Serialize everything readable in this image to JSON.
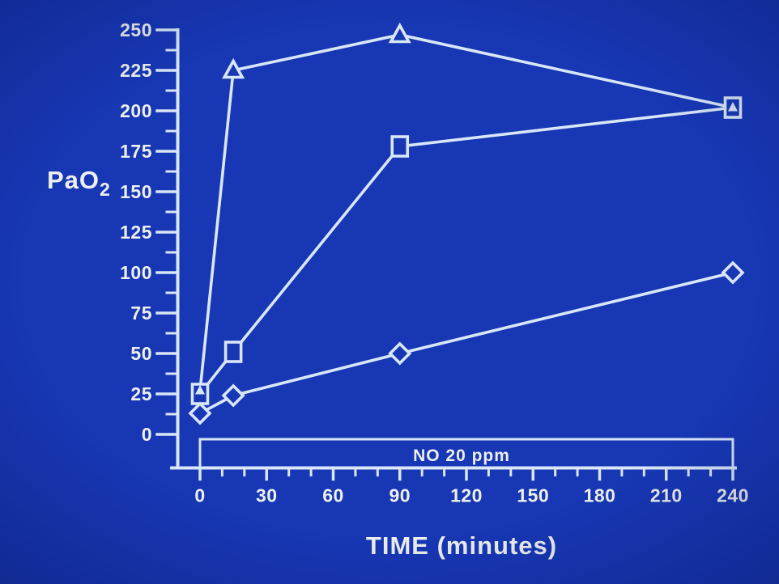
{
  "slide": {
    "background_color": "#1737b4",
    "vignette_color": "rgba(4,12,70,0.30)",
    "line_color": "#d8e6f7",
    "text_color": "#edf0ee"
  },
  "chart_data": {
    "type": "line",
    "title": "",
    "xlabel": "TIME (minutes)",
    "ylabel": "PaO2",
    "ylabel_base": "PaO",
    "ylabel_subscript": "2",
    "x": [
      0,
      15,
      90,
      240
    ],
    "series": [
      {
        "name": "triangle-group",
        "marker": "triangle",
        "values": [
          27,
          225,
          247,
          202
        ]
      },
      {
        "name": "square-group",
        "marker": "square",
        "values": [
          25,
          51,
          178,
          202
        ]
      },
      {
        "name": "diamond-group",
        "marker": "diamond",
        "values": [
          13,
          24,
          50,
          100
        ]
      }
    ],
    "xlim": [
      0,
      240
    ],
    "ylim": [
      0,
      250
    ],
    "x_major_ticks": [
      0,
      30,
      60,
      90,
      120,
      150,
      180,
      210,
      240
    ],
    "x_minor_tick_step": 10,
    "y_major_ticks": [
      0,
      25,
      50,
      75,
      100,
      125,
      150,
      175,
      200,
      225,
      250
    ],
    "y_minor_tick_step": 12.5,
    "grid": "off",
    "legend": "none",
    "annotation_box": {
      "label": "NO 20 ppm",
      "x_start": 0,
      "x_end": 240
    }
  }
}
